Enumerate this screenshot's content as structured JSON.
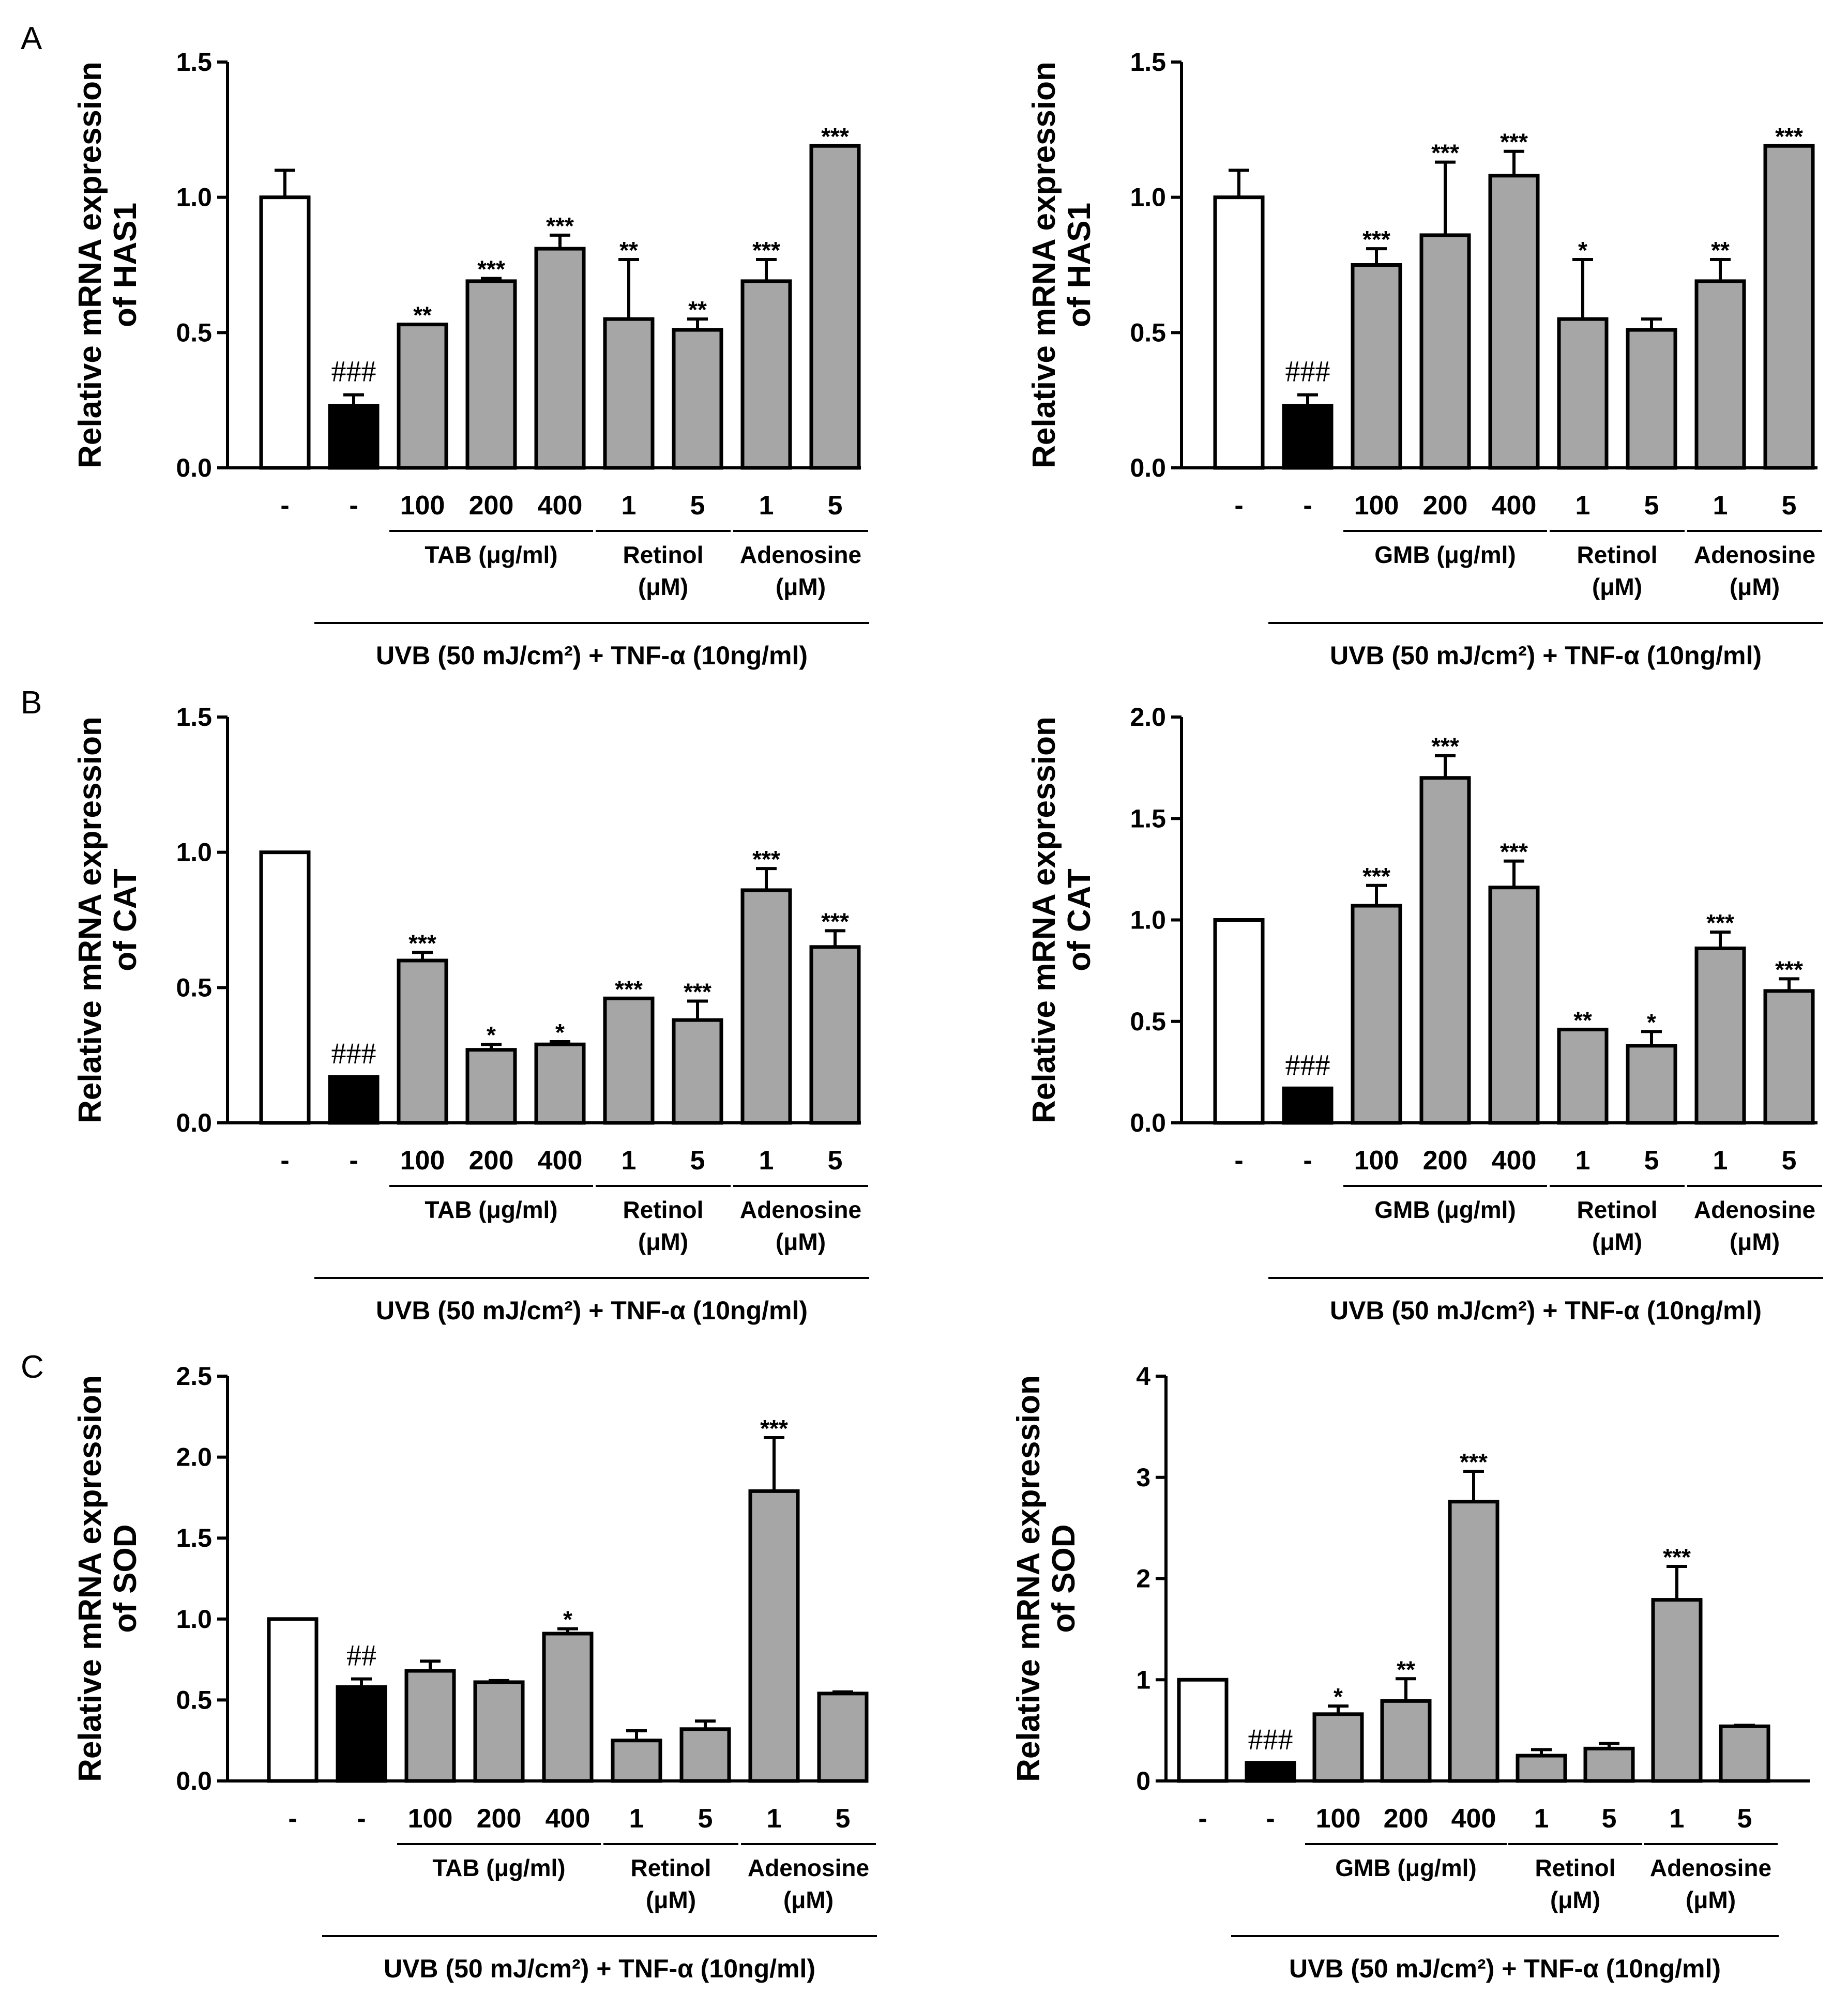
{
  "colors": {
    "control": "#ffffff",
    "model": "#000000",
    "treated": "#a6a6a6",
    "stroke": "#000000"
  },
  "common": {
    "categories": [
      "-",
      "-",
      "100",
      "200",
      "400",
      "1",
      "5",
      "1",
      "5"
    ],
    "uvb_label": "UVB (50 mJ/cm²) + TNF-α (10ng/ml)",
    "group_retinol": [
      "Retinol",
      "(μM)"
    ],
    "group_adenosine": [
      "Adenosine",
      "(μM)"
    ],
    "panel_labels": [
      "A",
      "B",
      "C"
    ]
  },
  "chart_data": [
    {
      "id": "A-left",
      "type": "bar",
      "panel": "A",
      "ylabel": [
        "Relative mRNA expression",
        "of HAS1"
      ],
      "ylim": [
        0,
        1.5
      ],
      "yticks": [
        "0.0",
        "0.5",
        "1.0",
        "1.5"
      ],
      "extract_label": "TAB (μg/ml)",
      "categories": [
        "-",
        "-",
        "100",
        "200",
        "400",
        "1",
        "5",
        "1",
        "5"
      ],
      "values": [
        1.0,
        0.23,
        0.53,
        0.69,
        0.81,
        0.55,
        0.51,
        0.69,
        1.19
      ],
      "errors": [
        0.1,
        0.04,
        0.005,
        0.01,
        0.05,
        0.22,
        0.04,
        0.08,
        0.005
      ],
      "annotations": [
        "",
        "###",
        "**",
        "***",
        "***",
        "**",
        "**",
        "***",
        "***"
      ]
    },
    {
      "id": "A-right",
      "type": "bar",
      "panel": "A",
      "ylabel": [
        "Relative mRNA expression",
        "of HAS1"
      ],
      "ylim": [
        0,
        1.5
      ],
      "yticks": [
        "0.0",
        "0.5",
        "1.0",
        "1.5"
      ],
      "extract_label": "GMB (μg/ml)",
      "categories": [
        "-",
        "-",
        "100",
        "200",
        "400",
        "1",
        "5",
        "1",
        "5"
      ],
      "values": [
        1.0,
        0.23,
        0.75,
        0.86,
        1.08,
        0.55,
        0.51,
        0.69,
        1.19
      ],
      "errors": [
        0.1,
        0.04,
        0.06,
        0.27,
        0.09,
        0.22,
        0.04,
        0.08,
        0.005
      ],
      "annotations": [
        "",
        "###",
        "***",
        "***",
        "***",
        "*",
        "",
        "**",
        "***"
      ]
    },
    {
      "id": "B-left",
      "type": "bar",
      "panel": "B",
      "ylabel": [
        "Relative mRNA expression",
        "of CAT"
      ],
      "ylim": [
        0,
        1.5
      ],
      "yticks": [
        "0.0",
        "0.5",
        "1.0",
        "1.5"
      ],
      "extract_label": "TAB (μg/ml)",
      "categories": [
        "-",
        "-",
        "100",
        "200",
        "400",
        "1",
        "5",
        "1",
        "5"
      ],
      "values": [
        1.0,
        0.17,
        0.6,
        0.27,
        0.29,
        0.46,
        0.38,
        0.86,
        0.65
      ],
      "errors": [
        0.005,
        0.005,
        0.03,
        0.02,
        0.01,
        0.005,
        0.07,
        0.08,
        0.06
      ],
      "annotations": [
        "",
        "###",
        "***",
        "*",
        "*",
        "***",
        "***",
        "***",
        "***"
      ]
    },
    {
      "id": "B-right",
      "type": "bar",
      "panel": "B",
      "ylabel": [
        "Relative mRNA expression",
        "of CAT"
      ],
      "ylim": [
        0,
        2.0
      ],
      "yticks": [
        "0.0",
        "0.5",
        "1.0",
        "1.5",
        "2.0"
      ],
      "extract_label": "GMB (μg/ml)",
      "categories": [
        "-",
        "-",
        "100",
        "200",
        "400",
        "1",
        "5",
        "1",
        "5"
      ],
      "values": [
        1.0,
        0.17,
        1.07,
        1.7,
        1.16,
        0.46,
        0.38,
        0.86,
        0.65
      ],
      "errors": [
        0.005,
        0.005,
        0.1,
        0.11,
        0.13,
        0.005,
        0.07,
        0.08,
        0.06
      ],
      "annotations": [
        "",
        "###",
        "***",
        "***",
        "***",
        "**",
        "*",
        "***",
        "***"
      ]
    },
    {
      "id": "C-left",
      "type": "bar",
      "panel": "C",
      "ylabel": [
        "Relative mRNA expression",
        "of SOD"
      ],
      "ylim": [
        0,
        2.5
      ],
      "yticks": [
        "0.0",
        "0.5",
        "1.0",
        "1.5",
        "2.0",
        "2.5"
      ],
      "extract_label": "TAB (μg/ml)",
      "categories": [
        "-",
        "-",
        "100",
        "200",
        "400",
        "1",
        "5",
        "1",
        "5"
      ],
      "values": [
        1.0,
        0.58,
        0.68,
        0.61,
        0.91,
        0.25,
        0.32,
        1.79,
        0.54
      ],
      "errors": [
        0.005,
        0.05,
        0.06,
        0.01,
        0.03,
        0.06,
        0.05,
        0.33,
        0.01
      ],
      "annotations": [
        "",
        "##",
        "",
        "",
        "*",
        "",
        "",
        "***",
        ""
      ]
    },
    {
      "id": "C-right",
      "type": "bar",
      "panel": "C",
      "ylabel": [
        "Relative mRNA expression",
        "of SOD"
      ],
      "ylim": [
        0,
        4
      ],
      "yticks": [
        "0",
        "1",
        "2",
        "3",
        "4"
      ],
      "extract_label": "GMB (μg/ml)",
      "categories": [
        "-",
        "-",
        "100",
        "200",
        "400",
        "1",
        "5",
        "1",
        "5"
      ],
      "values": [
        1.0,
        0.18,
        0.66,
        0.79,
        2.76,
        0.25,
        0.32,
        1.79,
        0.54
      ],
      "errors": [
        0.005,
        0.005,
        0.08,
        0.22,
        0.3,
        0.06,
        0.05,
        0.33,
        0.01
      ],
      "annotations": [
        "",
        "###",
        "*",
        "**",
        "***",
        "",
        "",
        "***",
        ""
      ]
    }
  ]
}
